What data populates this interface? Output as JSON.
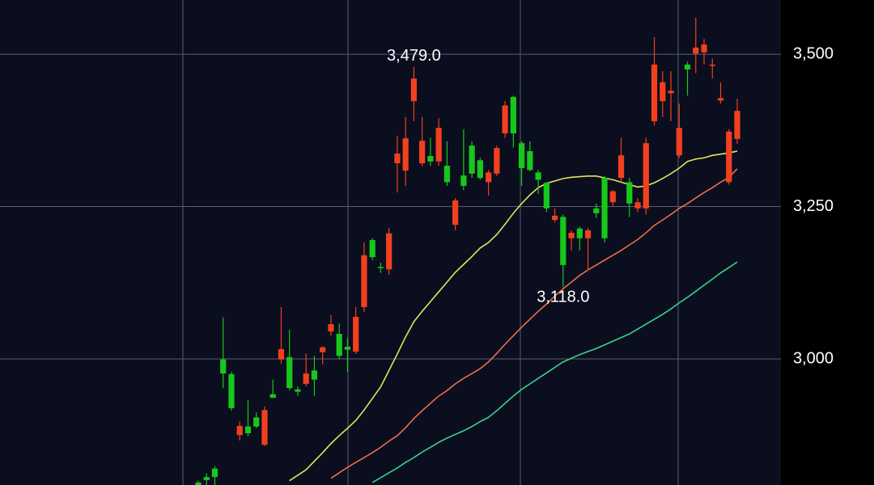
{
  "chart_data": {
    "type": "candlestick",
    "up_color": "#f2401e",
    "down_color": "#16c81c",
    "ylim": [
      2793,
      3589
    ],
    "yticks": [
      {
        "value": 3000,
        "label": "3,000"
      },
      {
        "value": 3250,
        "label": "3,250"
      },
      {
        "value": 3500,
        "label": "3,500"
      }
    ],
    "grid": true,
    "open": [
      2797,
      2806,
      2820,
      2999,
      2975,
      2875,
      2889,
      2904,
      2859,
      2942,
      2999,
      3003,
      2950,
      2959,
      2981,
      3011,
      3045,
      3041,
      3020,
      3012,
      3085,
      3195,
      3151,
      3147,
      3321,
      3309,
      3423,
      3321,
      3333,
      3324,
      3317,
      3220,
      3301,
      3350,
      3326,
      3290,
      3304,
      3370,
      3430,
      3354,
      3341,
      3306,
      3289,
      3228,
      3233,
      3198,
      3214,
      3198,
      3247,
      3297,
      3257,
      3297,
      3290,
      3247,
      3247,
      3390,
      3423,
      3436,
      3334,
      3483,
      3501,
      3503,
      3481,
      3424,
      3290,
      3361
    ],
    "high": [
      2800,
      2812,
      2824,
      3068,
      2979,
      2897,
      2932,
      2912,
      2922,
      2966,
      3085,
      3048,
      2955,
      3009,
      3005,
      3021,
      3072,
      3058,
      3034,
      3085,
      3191,
      3198,
      3158,
      3215,
      3366,
      3397,
      3479,
      3397,
      3363,
      3395,
      3357,
      3264,
      3377,
      3357,
      3330,
      3310,
      3350,
      3423,
      3432,
      3357,
      3357,
      3310,
      3290,
      3247,
      3237,
      3211,
      3217,
      3215,
      3255,
      3300,
      3277,
      3363,
      3297,
      3264,
      3363,
      3528,
      3472,
      3472,
      3419,
      3488,
      3560,
      3525,
      3493,
      3454,
      3377,
      3427
    ],
    "low": [
      2793,
      2793,
      2793,
      2952,
      2915,
      2866,
      2873,
      2886,
      2857,
      2936,
      2992,
      2948,
      2939,
      2955,
      2939,
      2991,
      3038,
      2999,
      2979,
      3008,
      3077,
      3162,
      3141,
      3138,
      3273,
      3284,
      3390,
      3316,
      3317,
      3317,
      3284,
      3211,
      3277,
      3297,
      3294,
      3268,
      3300,
      3363,
      3347,
      3284,
      3308,
      3271,
      3241,
      3224,
      3118,
      3178,
      3178,
      3145,
      3231,
      3191,
      3251,
      3290,
      3233,
      3241,
      3237,
      3383,
      3397,
      3390,
      3330,
      3432,
      3469,
      3483,
      3460,
      3419,
      3286,
      3353
    ],
    "close": [
      2793,
      2801,
      2806,
      2976,
      2919,
      2890,
      2878,
      2889,
      2916,
      2936,
      3016,
      2952,
      2946,
      2976,
      2966,
      3019,
      3057,
      3005,
      3015,
      3069,
      3170,
      3167,
      3149,
      3206,
      3337,
      3362,
      3460,
      3358,
      3324,
      3379,
      3290,
      3260,
      3284,
      3304,
      3297,
      3306,
      3346,
      3416,
      3370,
      3313,
      3310,
      3294,
      3247,
      3235,
      3154,
      3207,
      3198,
      3211,
      3239,
      3198,
      3275,
      3334,
      3255,
      3257,
      3354,
      3483,
      3454,
      3440,
      3379,
      3475,
      3511,
      3516,
      3483,
      3428,
      3373,
      3407
    ],
    "series": [
      {
        "color": "#e4e45c",
        "values": [
          null,
          null,
          null,
          null,
          null,
          null,
          null,
          null,
          null,
          null,
          null,
          2800,
          2809,
          2818,
          2832,
          2846,
          2861,
          2874,
          2886,
          2899,
          2916,
          2935,
          2954,
          2981,
          3008,
          3036,
          3061,
          3078,
          3094,
          3110,
          3126,
          3142,
          3155,
          3168,
          3182,
          3191,
          3204,
          3221,
          3239,
          3255,
          3269,
          3281,
          3288,
          3292,
          3296,
          3298,
          3299,
          3300,
          3300,
          3297,
          3294,
          3290,
          3286,
          3282,
          3284,
          3289,
          3296,
          3304,
          3313,
          3324,
          3328,
          3330,
          3334,
          3336,
          3338,
          3341
        ]
      },
      {
        "color": "#ee6c4c",
        "values": [
          null,
          null,
          null,
          null,
          null,
          null,
          null,
          null,
          null,
          null,
          null,
          null,
          null,
          null,
          null,
          null,
          2804,
          2813,
          2822,
          2830,
          2838,
          2846,
          2855,
          2865,
          2874,
          2887,
          2902,
          2915,
          2927,
          2939,
          2948,
          2959,
          2968,
          2976,
          2984,
          2995,
          3009,
          3024,
          3038,
          3052,
          3065,
          3078,
          3090,
          3103,
          3115,
          3126,
          3137,
          3146,
          3154,
          3162,
          3170,
          3178,
          3187,
          3196,
          3207,
          3219,
          3228,
          3237,
          3247,
          3255,
          3264,
          3273,
          3281,
          3290,
          3298,
          3312
        ]
      },
      {
        "color": "#36d48e",
        "values": [
          null,
          null,
          null,
          null,
          null,
          null,
          null,
          null,
          null,
          null,
          null,
          null,
          null,
          null,
          null,
          null,
          null,
          null,
          null,
          null,
          null,
          2797,
          2805,
          2813,
          2821,
          2830,
          2838,
          2847,
          2855,
          2863,
          2870,
          2876,
          2882,
          2889,
          2897,
          2904,
          2915,
          2927,
          2939,
          2950,
          2959,
          2968,
          2977,
          2986,
          2995,
          3001,
          3007,
          3012,
          3017,
          3023,
          3029,
          3035,
          3041,
          3049,
          3057,
          3065,
          3073,
          3082,
          3092,
          3101,
          3111,
          3121,
          3131,
          3141,
          3150,
          3159
        ]
      }
    ],
    "annotations": [
      {
        "value": 3479,
        "label": "3,479.0"
      },
      {
        "value": 3118,
        "label": "3,118.0"
      }
    ]
  }
}
